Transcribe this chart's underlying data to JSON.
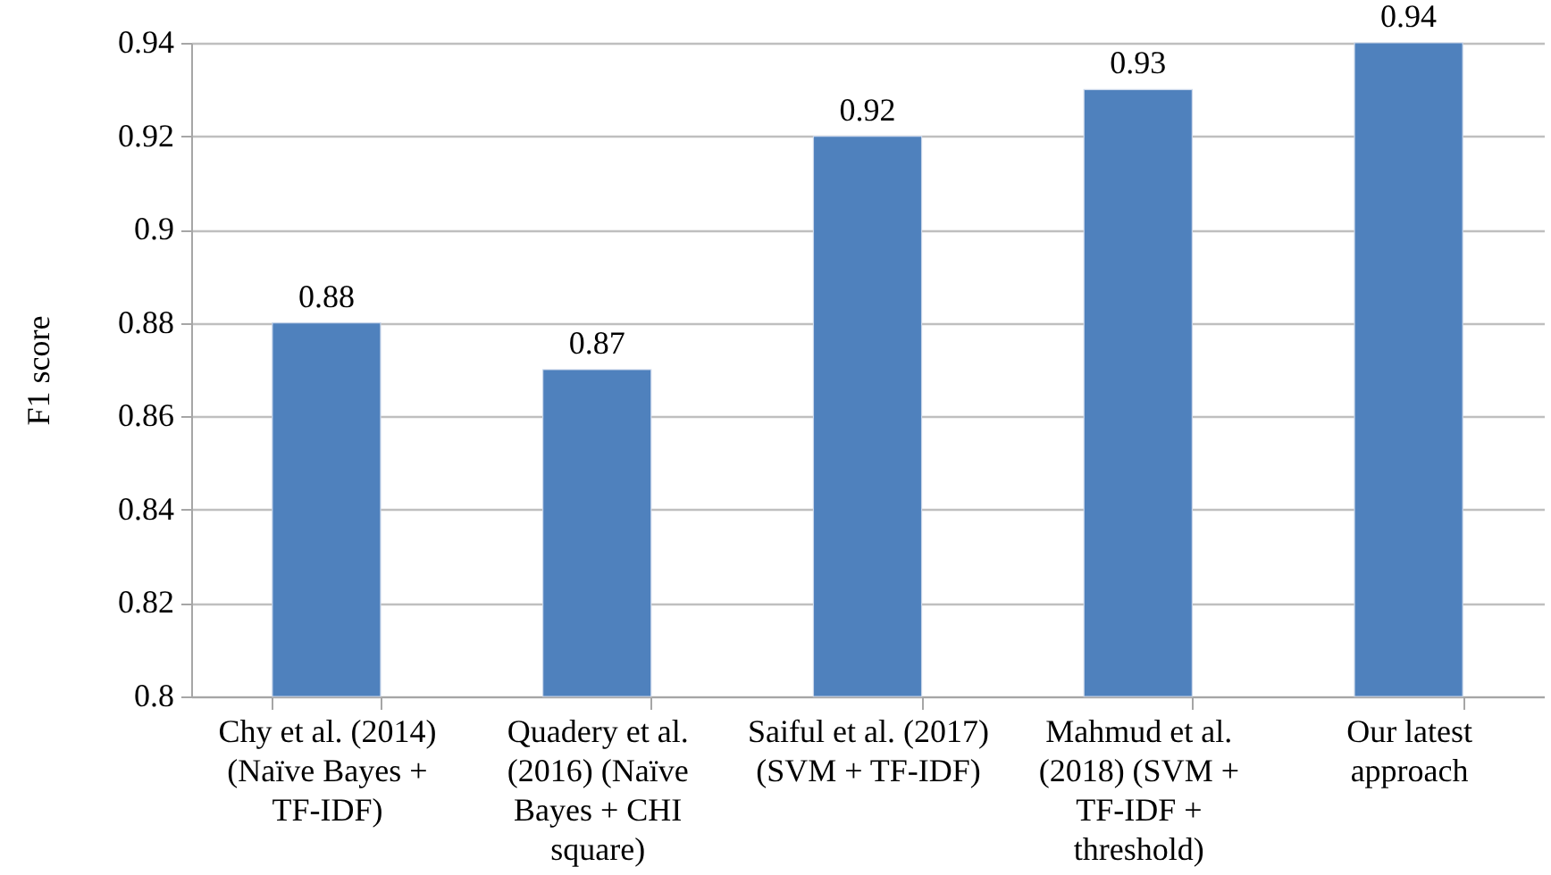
{
  "chart_data": {
    "type": "bar",
    "ylabel": "F1 score",
    "categories": [
      "Chy et al. (2014) (Naïve Bayes + TF-IDF)",
      "Quadery et al. (2016) (Naïve Bayes + CHI square)",
      "Saiful et al. (2017) (SVM + TF-IDF)",
      "Mahmud et al. (2018) (SVM + TF-IDF + threshold)",
      "Our latest approach"
    ],
    "values": [
      0.88,
      0.87,
      0.92,
      0.93,
      0.94
    ],
    "color": "#4f81bd",
    "ylim": [
      0.8,
      0.94
    ],
    "yticks": [
      0.8,
      0.82,
      0.84,
      0.86,
      0.88,
      0.9,
      0.92,
      0.94
    ],
    "grid": "y",
    "data_labels": true
  }
}
